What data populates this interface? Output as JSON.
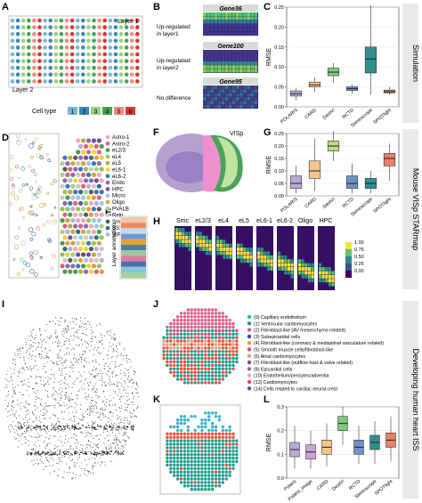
{
  "panels": {
    "A": {
      "letter": "A",
      "layer1": "Layer 1",
      "layer2": "Layer 2",
      "legend_title": "Cell type",
      "cell_types": [
        "1",
        "2",
        "3",
        "4",
        "5",
        "6"
      ],
      "cell_colors": [
        "#7ab6d6",
        "#3e86b8",
        "#9bd17d",
        "#4aa05a",
        "#f08a7e",
        "#d7382f"
      ]
    },
    "B": {
      "letter": "B",
      "gene1": "Gene36",
      "gene2": "Gene100",
      "gene3": "Gene95",
      "label1": [
        "Up-regulated",
        "in layer1"
      ],
      "label2": [
        "Up-regulated",
        "in layer2"
      ],
      "label3": "No difference"
    },
    "C": {
      "letter": "C",
      "ylabel": "RMSE",
      "side_label": "Simulation"
    },
    "D": {
      "letter": "D"
    },
    "legendD": {
      "items": [
        "Astro-1",
        "Astro-2",
        "eL2/3",
        "eL4",
        "eL5",
        "eL6-1",
        "eL6-2",
        "Endo",
        "HPC",
        "Micro",
        "Oligo",
        "PVALB",
        "Reln",
        "Smc",
        "SST",
        "VIP"
      ],
      "colors": [
        "#f3a6b6",
        "#e05f7d",
        "#4e9a4e",
        "#97c24f",
        "#c4a63b",
        "#f0cf3a",
        "#3c76b5",
        "#8b6bb0",
        "#6f4ea1",
        "#9ac8e6",
        "#e79a3c",
        "#a9d18e",
        "#c9c9c9",
        "#5a5a5a",
        "#2d6e7e",
        "#b1b1d6"
      ]
    },
    "E": {
      "letter": "E",
      "axis": "Layer annotation"
    },
    "F": {
      "letter": "F",
      "region": "VISp"
    },
    "G": {
      "letter": "G",
      "ylabel": "RMSE",
      "side_label": "Mouse VISp STARmap"
    },
    "H": {
      "letter": "H",
      "titles": [
        "Smc",
        "eL2/3",
        "eL4",
        "eL5",
        "eL6-1",
        "eL6-2",
        "Oligo",
        "HPC"
      ],
      "cbar_ticks": [
        "1.00",
        "0.75",
        "0.50",
        "0.25",
        "0.00"
      ]
    },
    "I": {
      "letter": "I"
    },
    "J": {
      "letter": "J",
      "clusters": [
        "(0) Capillary endothelium",
        "(1) Ventricular cardiomyocytes",
        "(2) Fibroblast-like (AV mesenchyme related)",
        "(3) Subepicardial cells",
        "(4) Fibroblast-like (coronary & mediastinal vasculature related)",
        "(5) Smooth muscle cells/fibroblast-like",
        "(6) Atrial cardiomyocytes",
        "(7) Fibroblast-like (outflow tract & valve related)",
        "(8) Epicardial cells",
        "(10) Endothelium/pericytes/adventia",
        "(12) Cardiomyocytes",
        "(14) Cells related to cardiac neural crest"
      ],
      "cluster_colors": [
        "#2eb7b0",
        "#1f9a8b",
        "#e15b8a",
        "#2f4f9e",
        "#f39b3a",
        "#c3547a",
        "#d9a07a",
        "#9a3f8f",
        "#7d7d7d",
        "#e3a4c8",
        "#e8503a",
        "#3f5fa8"
      ]
    },
    "K": {
      "letter": "K"
    },
    "L": {
      "letter": "L",
      "ylabel": "RMSE",
      "side_label": "Developing human heart ISS"
    }
  },
  "chart_data": [
    {
      "type": "box",
      "panel": "C",
      "categories": [
        "POLARIS",
        "CARD",
        "DestVI",
        "RCTD",
        "Stereoscope",
        "SPOTlight"
      ],
      "colors": [
        "#b8a9d9",
        "#f5c58a",
        "#7fc97f",
        "#6f90c4",
        "#2f8f8f",
        "#e8806a"
      ],
      "stats": [
        {
          "min": 0.016,
          "q1": 0.027,
          "median": 0.033,
          "q3": 0.04,
          "max": 0.047
        },
        {
          "min": 0.038,
          "q1": 0.05,
          "median": 0.055,
          "q3": 0.062,
          "max": 0.075
        },
        {
          "min": 0.06,
          "q1": 0.078,
          "median": 0.087,
          "q3": 0.097,
          "max": 0.11
        },
        {
          "min": 0.033,
          "q1": 0.041,
          "median": 0.046,
          "q3": 0.05,
          "max": 0.057
        },
        {
          "min": 0.03,
          "q1": 0.085,
          "median": 0.12,
          "q3": 0.15,
          "max": 0.255
        },
        {
          "min": 0.03,
          "q1": 0.035,
          "median": 0.038,
          "q3": 0.042,
          "max": 0.05
        }
      ],
      "ylim": [
        0.0,
        0.25
      ],
      "yticks": [
        "0.00",
        "0.05",
        "0.10",
        "0.15",
        "0.20",
        "0.25"
      ],
      "ylabel": "RMSE"
    },
    {
      "type": "box",
      "panel": "G",
      "categories": [
        "POLARIS",
        "CARD",
        "DestVI",
        "RCTD",
        "Stereoscope",
        "SPOTlight"
      ],
      "colors": [
        "#b8a9d9",
        "#f5c58a",
        "#b9dd7a",
        "#6f90c4",
        "#2f8f8f",
        "#e8806a"
      ],
      "stats": [
        {
          "min": 0.01,
          "q1": 0.03,
          "median": 0.05,
          "q3": 0.08,
          "max": 0.12
        },
        {
          "min": 0.02,
          "q1": 0.07,
          "median": 0.1,
          "q3": 0.14,
          "max": 0.23
        },
        {
          "min": 0.14,
          "q1": 0.18,
          "median": 0.2,
          "q3": 0.22,
          "max": 0.26
        },
        {
          "min": 0.01,
          "q1": 0.03,
          "median": 0.05,
          "q3": 0.08,
          "max": 0.13
        },
        {
          "min": 0.01,
          "q1": 0.03,
          "median": 0.05,
          "q3": 0.07,
          "max": 0.1
        },
        {
          "min": 0.06,
          "q1": 0.12,
          "median": 0.15,
          "q3": 0.17,
          "max": 0.21
        }
      ],
      "ylim": [
        0.0,
        0.25
      ],
      "yticks": [
        "0.00",
        "0.05",
        "0.10",
        "0.15",
        "0.20",
        "0.25"
      ],
      "ylabel": "RMSE"
    },
    {
      "type": "box",
      "panel": "L",
      "categories": [
        "Polaris",
        "Polaris_image",
        "CARD",
        "DestVI",
        "RCTD",
        "Stereoscope",
        "SPOTlight"
      ],
      "colors": [
        "#b8a9d9",
        "#c9a3d8",
        "#f5c58a",
        "#7fc97f",
        "#6f90c4",
        "#2f8f8f",
        "#e8806a"
      ],
      "stats": [
        {
          "min": 0.04,
          "q1": 0.09,
          "median": 0.12,
          "q3": 0.15,
          "max": 0.22
        },
        {
          "min": 0.04,
          "q1": 0.08,
          "median": 0.11,
          "q3": 0.14,
          "max": 0.2
        },
        {
          "min": 0.05,
          "q1": 0.1,
          "median": 0.13,
          "q3": 0.16,
          "max": 0.23
        },
        {
          "min": 0.14,
          "q1": 0.2,
          "median": 0.23,
          "q3": 0.26,
          "max": 0.3
        },
        {
          "min": 0.06,
          "q1": 0.1,
          "median": 0.13,
          "q3": 0.16,
          "max": 0.22
        },
        {
          "min": 0.06,
          "q1": 0.12,
          "median": 0.15,
          "q3": 0.18,
          "max": 0.24
        },
        {
          "min": 0.07,
          "q1": 0.13,
          "median": 0.16,
          "q3": 0.19,
          "max": 0.26
        }
      ],
      "ylim": [
        0.0,
        0.3
      ],
      "yticks": [
        "0.0",
        "0.1",
        "0.2",
        "0.3"
      ],
      "ylabel": "RMSE"
    }
  ]
}
